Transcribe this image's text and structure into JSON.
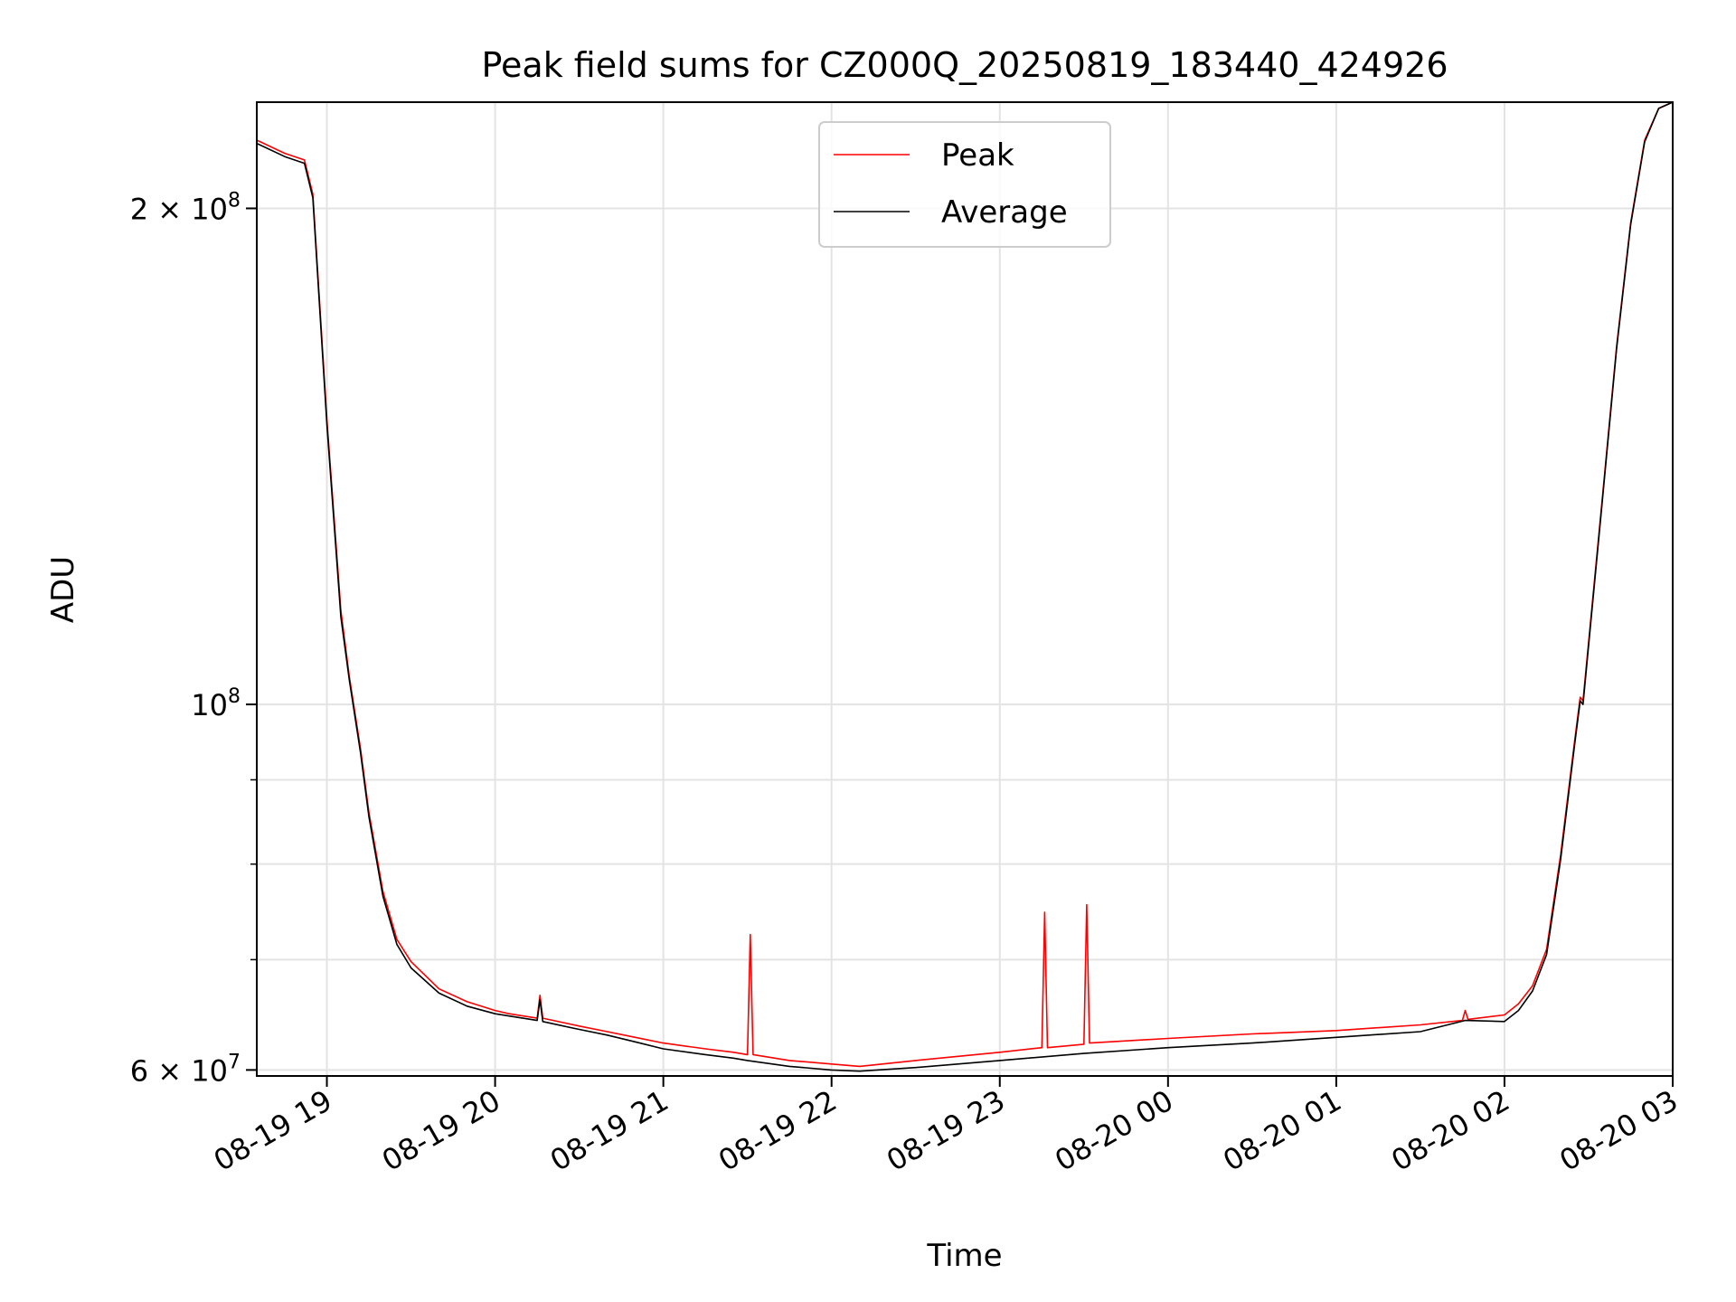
{
  "chart_data": {
    "type": "line",
    "title": "Peak field sums for CZ000Q_20250819_183440_424926",
    "xlabel": "Time",
    "ylabel": "ADU",
    "yscale": "log",
    "grid": true,
    "legend_position": "top-center",
    "xlim": [
      "2025-08-19 18:35",
      "2025-08-20 03:00"
    ],
    "ylim": [
      59500000,
      232000000
    ],
    "x_ticks": [
      {
        "t": "2025-08-19 19:00",
        "label": "08-19 19"
      },
      {
        "t": "2025-08-19 20:00",
        "label": "08-19 20"
      },
      {
        "t": "2025-08-19 21:00",
        "label": "08-19 21"
      },
      {
        "t": "2025-08-19 22:00",
        "label": "08-19 22"
      },
      {
        "t": "2025-08-19 23:00",
        "label": "08-19 23"
      },
      {
        "t": "2025-08-20 00:00",
        "label": "08-20 00"
      },
      {
        "t": "2025-08-20 01:00",
        "label": "08-20 01"
      },
      {
        "t": "2025-08-20 02:00",
        "label": "08-20 02"
      },
      {
        "t": "2025-08-20 03:00",
        "label": "08-20 03"
      }
    ],
    "y_ticks": [
      {
        "value": 200000000,
        "base": "2 × 10",
        "exp": "8"
      },
      {
        "value": 100000000,
        "base": "10",
        "exp": "8"
      },
      {
        "value": 60000000,
        "base": "6 × 10",
        "exp": "7"
      }
    ],
    "y_minor_ticks": [
      70000000,
      80000000,
      90000000
    ],
    "series": [
      {
        "name": "Peak",
        "color": "#ff0000",
        "points": [
          [
            "2025-08-19 18:35",
            220000000
          ],
          [
            "2025-08-19 18:45",
            216000000
          ],
          [
            "2025-08-19 18:52",
            214000000
          ],
          [
            "2025-08-19 18:55",
            204000000
          ],
          [
            "2025-08-19 19:00",
            149000000
          ],
          [
            "2025-08-19 19:05",
            114000000
          ],
          [
            "2025-08-19 19:08",
            104000000
          ],
          [
            "2025-08-19 19:12",
            94000000
          ],
          [
            "2025-08-19 19:15",
            86000000
          ],
          [
            "2025-08-19 19:20",
            77000000
          ],
          [
            "2025-08-19 19:25",
            72000000
          ],
          [
            "2025-08-19 19:30",
            69800000
          ],
          [
            "2025-08-19 19:40",
            67200000
          ],
          [
            "2025-08-19 19:50",
            66000000
          ],
          [
            "2025-08-19 20:00",
            65200000
          ],
          [
            "2025-08-19 20:05",
            64900000
          ],
          [
            "2025-08-19 20:15",
            64500000
          ],
          [
            "2025-08-19 20:16",
            66600000
          ],
          [
            "2025-08-19 20:17",
            64500000
          ],
          [
            "2025-08-19 20:30",
            63800000
          ],
          [
            "2025-08-19 20:40",
            63300000
          ],
          [
            "2025-08-19 20:50",
            62800000
          ],
          [
            "2025-08-19 21:00",
            62300000
          ],
          [
            "2025-08-19 21:15",
            61800000
          ],
          [
            "2025-08-19 21:25",
            61500000
          ],
          [
            "2025-08-19 21:30",
            61300000
          ],
          [
            "2025-08-19 21:31",
            72500000
          ],
          [
            "2025-08-19 21:32",
            61300000
          ],
          [
            "2025-08-19 21:45",
            60800000
          ],
          [
            "2025-08-19 22:00",
            60500000
          ],
          [
            "2025-08-19 22:10",
            60300000
          ],
          [
            "2025-08-19 22:30",
            60800000
          ],
          [
            "2025-08-19 23:00",
            61500000
          ],
          [
            "2025-08-19 23:15",
            61900000
          ],
          [
            "2025-08-19 23:16",
            74800000
          ],
          [
            "2025-08-19 23:17",
            61900000
          ],
          [
            "2025-08-19 23:30",
            62200000
          ],
          [
            "2025-08-19 23:31",
            75600000
          ],
          [
            "2025-08-19 23:32",
            62300000
          ],
          [
            "2025-08-20 00:00",
            62700000
          ],
          [
            "2025-08-20 00:30",
            63100000
          ],
          [
            "2025-08-20 01:00",
            63400000
          ],
          [
            "2025-08-20 01:30",
            63900000
          ],
          [
            "2025-08-20 01:45",
            64300000
          ],
          [
            "2025-08-20 01:46",
            65200000
          ],
          [
            "2025-08-20 01:47",
            64400000
          ],
          [
            "2025-08-20 02:00",
            64800000
          ],
          [
            "2025-08-20 02:05",
            65800000
          ],
          [
            "2025-08-20 02:10",
            67500000
          ],
          [
            "2025-08-20 02:15",
            71000000
          ],
          [
            "2025-08-20 02:20",
            81000000
          ],
          [
            "2025-08-20 02:25",
            95000000
          ],
          [
            "2025-08-20 02:27",
            101000000
          ],
          [
            "2025-08-20 02:28",
            100500000
          ],
          [
            "2025-08-20 02:35",
            134000000
          ],
          [
            "2025-08-20 02:40",
            165000000
          ],
          [
            "2025-08-20 02:45",
            196000000
          ],
          [
            "2025-08-20 02:50",
            220000000
          ],
          [
            "2025-08-20 02:55",
            230000000
          ],
          [
            "2025-08-20 03:00",
            232000000
          ]
        ]
      },
      {
        "name": "Average",
        "color": "#000000",
        "points": [
          [
            "2025-08-19 18:35",
            219000000
          ],
          [
            "2025-08-19 18:45",
            215000000
          ],
          [
            "2025-08-19 18:52",
            213000000
          ],
          [
            "2025-08-19 18:55",
            203000000
          ],
          [
            "2025-08-19 19:00",
            148000000
          ],
          [
            "2025-08-19 19:05",
            113000000
          ],
          [
            "2025-08-19 19:08",
            103500000
          ],
          [
            "2025-08-19 19:12",
            93500000
          ],
          [
            "2025-08-19 19:15",
            85500000
          ],
          [
            "2025-08-19 19:20",
            76500000
          ],
          [
            "2025-08-19 19:25",
            71500000
          ],
          [
            "2025-08-19 19:30",
            69200000
          ],
          [
            "2025-08-19 19:40",
            66800000
          ],
          [
            "2025-08-19 19:50",
            65600000
          ],
          [
            "2025-08-19 20:00",
            64900000
          ],
          [
            "2025-08-19 20:05",
            64700000
          ],
          [
            "2025-08-19 20:15",
            64300000
          ],
          [
            "2025-08-19 20:16",
            66200000
          ],
          [
            "2025-08-19 20:17",
            64200000
          ],
          [
            "2025-08-19 20:30",
            63500000
          ],
          [
            "2025-08-19 20:40",
            63000000
          ],
          [
            "2025-08-19 20:50",
            62400000
          ],
          [
            "2025-08-19 21:00",
            61800000
          ],
          [
            "2025-08-19 21:15",
            61300000
          ],
          [
            "2025-08-19 21:25",
            61000000
          ],
          [
            "2025-08-19 21:30",
            60800000
          ],
          [
            "2025-08-19 21:45",
            60300000
          ],
          [
            "2025-08-19 22:00",
            60000000
          ],
          [
            "2025-08-19 22:10",
            59900000
          ],
          [
            "2025-08-19 22:30",
            60200000
          ],
          [
            "2025-08-19 23:00",
            60800000
          ],
          [
            "2025-08-19 23:30",
            61400000
          ],
          [
            "2025-08-20 00:00",
            61900000
          ],
          [
            "2025-08-20 00:30",
            62300000
          ],
          [
            "2025-08-20 01:00",
            62800000
          ],
          [
            "2025-08-20 01:30",
            63300000
          ],
          [
            "2025-08-20 01:46",
            64300000
          ],
          [
            "2025-08-20 02:00",
            64200000
          ],
          [
            "2025-08-20 02:05",
            65200000
          ],
          [
            "2025-08-20 02:10",
            67000000
          ],
          [
            "2025-08-20 02:15",
            70500000
          ],
          [
            "2025-08-20 02:20",
            80500000
          ],
          [
            "2025-08-20 02:25",
            94500000
          ],
          [
            "2025-08-20 02:27",
            100500000
          ],
          [
            "2025-08-20 02:28",
            100000000
          ],
          [
            "2025-08-20 02:35",
            133500000
          ],
          [
            "2025-08-20 02:40",
            164500000
          ],
          [
            "2025-08-20 02:45",
            195500000
          ],
          [
            "2025-08-20 02:50",
            219500000
          ],
          [
            "2025-08-20 02:55",
            230000000
          ],
          [
            "2025-08-20 03:00",
            232000000
          ]
        ]
      }
    ]
  }
}
